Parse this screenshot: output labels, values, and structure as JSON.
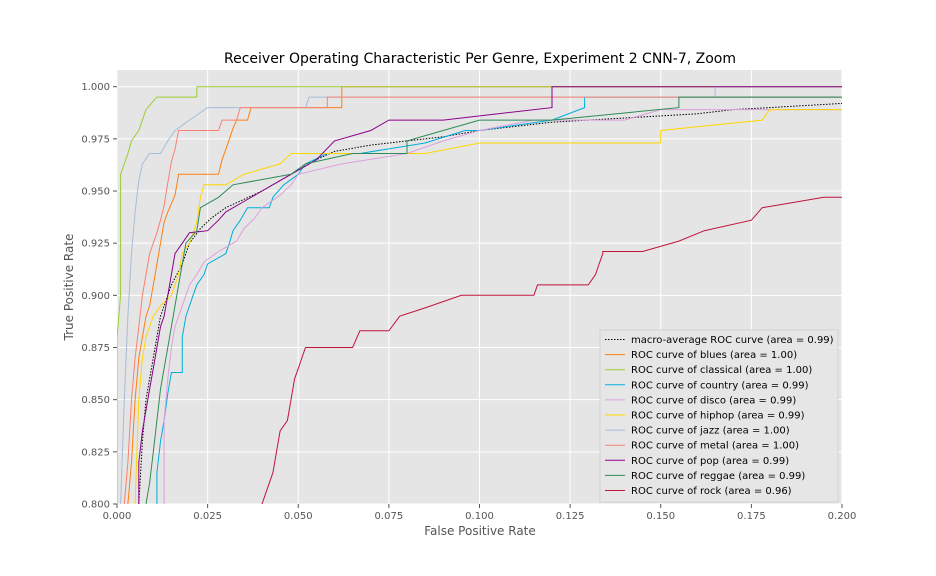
{
  "chart_data": {
    "type": "line",
    "title": "Receiver Operating Characteristic Per Genre, Experiment 2 CNN-7, Zoom",
    "xlabel": "False Positive Rate",
    "ylabel": "True Positive Rate",
    "xlim": [
      0.0,
      0.2
    ],
    "ylim": [
      0.8,
      1.008
    ],
    "xticks": [
      "0.000",
      "0.025",
      "0.050",
      "0.075",
      "0.100",
      "0.125",
      "0.150",
      "0.175",
      "0.200"
    ],
    "yticks": [
      "0.800",
      "0.825",
      "0.850",
      "0.875",
      "0.900",
      "0.925",
      "0.950",
      "0.975",
      "1.000"
    ],
    "grid": true,
    "legend_position": "lower-right",
    "series": [
      {
        "name": "macro-average ROC curve (area = 0.99)",
        "color": "#000000",
        "dashed": true,
        "points": [
          [
            0.006,
            0.8
          ],
          [
            0.007,
            0.83
          ],
          [
            0.008,
            0.85
          ],
          [
            0.009,
            0.86
          ],
          [
            0.01,
            0.87
          ],
          [
            0.012,
            0.89
          ],
          [
            0.015,
            0.905
          ],
          [
            0.018,
            0.915
          ],
          [
            0.02,
            0.925
          ],
          [
            0.023,
            0.932
          ],
          [
            0.026,
            0.937
          ],
          [
            0.03,
            0.942
          ],
          [
            0.035,
            0.946
          ],
          [
            0.04,
            0.95
          ],
          [
            0.045,
            0.955
          ],
          [
            0.05,
            0.96
          ],
          [
            0.055,
            0.965
          ],
          [
            0.06,
            0.969
          ],
          [
            0.07,
            0.972
          ],
          [
            0.08,
            0.974
          ],
          [
            0.09,
            0.976
          ],
          [
            0.1,
            0.979
          ],
          [
            0.12,
            0.983
          ],
          [
            0.14,
            0.985
          ],
          [
            0.16,
            0.987
          ],
          [
            0.17,
            0.989
          ],
          [
            0.18,
            0.99
          ],
          [
            0.19,
            0.991
          ],
          [
            0.2,
            0.992
          ]
        ]
      },
      {
        "name": "ROC curve of blues (area = 1.00)",
        "color": "#ff7f0e",
        "points": [
          [
            0.003,
            0.8
          ],
          [
            0.004,
            0.82
          ],
          [
            0.005,
            0.85
          ],
          [
            0.006,
            0.87
          ],
          [
            0.007,
            0.88
          ],
          [
            0.008,
            0.89
          ],
          [
            0.009,
            0.895
          ],
          [
            0.01,
            0.905
          ],
          [
            0.011,
            0.915
          ],
          [
            0.012,
            0.925
          ],
          [
            0.013,
            0.935
          ],
          [
            0.014,
            0.94
          ],
          [
            0.016,
            0.948
          ],
          [
            0.017,
            0.958
          ],
          [
            0.028,
            0.958
          ],
          [
            0.029,
            0.965
          ],
          [
            0.03,
            0.97
          ],
          [
            0.031,
            0.975
          ],
          [
            0.032,
            0.98
          ],
          [
            0.033,
            0.984
          ],
          [
            0.036,
            0.984
          ],
          [
            0.037,
            0.99
          ],
          [
            0.062,
            0.99
          ],
          [
            0.062,
            1.0
          ],
          [
            0.2,
            1.0
          ]
        ]
      },
      {
        "name": "ROC curve of classical (area = 1.00)",
        "color": "#9acd32",
        "points": [
          [
            0.0,
            0.8
          ],
          [
            0.0,
            0.88
          ],
          [
            0.001,
            0.9
          ],
          [
            0.001,
            0.958
          ],
          [
            0.002,
            0.963
          ],
          [
            0.003,
            0.968
          ],
          [
            0.004,
            0.974
          ],
          [
            0.006,
            0.979
          ],
          [
            0.007,
            0.984
          ],
          [
            0.008,
            0.989
          ],
          [
            0.011,
            0.995
          ],
          [
            0.022,
            0.995
          ],
          [
            0.022,
            1.0
          ],
          [
            0.2,
            1.0
          ]
        ]
      },
      {
        "name": "ROC curve of country (area = 0.99)",
        "color": "#00aedb",
        "points": [
          [
            0.011,
            0.8
          ],
          [
            0.011,
            0.815
          ],
          [
            0.012,
            0.83
          ],
          [
            0.013,
            0.84
          ],
          [
            0.014,
            0.853
          ],
          [
            0.015,
            0.863
          ],
          [
            0.018,
            0.863
          ],
          [
            0.018,
            0.88
          ],
          [
            0.019,
            0.89
          ],
          [
            0.02,
            0.895
          ],
          [
            0.021,
            0.9
          ],
          [
            0.022,
            0.905
          ],
          [
            0.024,
            0.91
          ],
          [
            0.025,
            0.915
          ],
          [
            0.03,
            0.92
          ],
          [
            0.031,
            0.925
          ],
          [
            0.032,
            0.931
          ],
          [
            0.034,
            0.936
          ],
          [
            0.036,
            0.942
          ],
          [
            0.042,
            0.942
          ],
          [
            0.043,
            0.947
          ],
          [
            0.046,
            0.953
          ],
          [
            0.05,
            0.958
          ],
          [
            0.052,
            0.963
          ],
          [
            0.058,
            0.968
          ],
          [
            0.067,
            0.968
          ],
          [
            0.085,
            0.973
          ],
          [
            0.096,
            0.979
          ],
          [
            0.1,
            0.979
          ],
          [
            0.12,
            0.984
          ],
          [
            0.129,
            0.99
          ],
          [
            0.129,
            0.995
          ],
          [
            0.2,
            0.995
          ]
        ]
      },
      {
        "name": "ROC curve of disco (area = 0.99)",
        "color": "#dda0dd",
        "points": [
          [
            0.013,
            0.8
          ],
          [
            0.013,
            0.84
          ],
          [
            0.014,
            0.86
          ],
          [
            0.015,
            0.875
          ],
          [
            0.016,
            0.885
          ],
          [
            0.018,
            0.895
          ],
          [
            0.02,
            0.905
          ],
          [
            0.022,
            0.91
          ],
          [
            0.024,
            0.916
          ],
          [
            0.028,
            0.921
          ],
          [
            0.033,
            0.926
          ],
          [
            0.035,
            0.932
          ],
          [
            0.038,
            0.937
          ],
          [
            0.04,
            0.942
          ],
          [
            0.045,
            0.948
          ],
          [
            0.048,
            0.953
          ],
          [
            0.05,
            0.958
          ],
          [
            0.062,
            0.963
          ],
          [
            0.08,
            0.968
          ],
          [
            0.09,
            0.974
          ],
          [
            0.1,
            0.979
          ],
          [
            0.115,
            0.984
          ],
          [
            0.14,
            0.984
          ],
          [
            0.15,
            0.989
          ],
          [
            0.2,
            0.989
          ]
        ]
      },
      {
        "name": "ROC curve of hiphop (area = 0.99)",
        "color": "#ffd700",
        "points": [
          [
            0.005,
            0.8
          ],
          [
            0.006,
            0.85
          ],
          [
            0.007,
            0.87
          ],
          [
            0.008,
            0.88
          ],
          [
            0.01,
            0.89
          ],
          [
            0.012,
            0.895
          ],
          [
            0.015,
            0.9
          ],
          [
            0.017,
            0.91
          ],
          [
            0.018,
            0.92
          ],
          [
            0.02,
            0.925
          ],
          [
            0.022,
            0.935
          ],
          [
            0.023,
            0.947
          ],
          [
            0.024,
            0.953
          ],
          [
            0.03,
            0.953
          ],
          [
            0.035,
            0.958
          ],
          [
            0.045,
            0.963
          ],
          [
            0.048,
            0.968
          ],
          [
            0.065,
            0.968
          ],
          [
            0.085,
            0.968
          ],
          [
            0.1,
            0.973
          ],
          [
            0.15,
            0.973
          ],
          [
            0.15,
            0.979
          ],
          [
            0.178,
            0.984
          ],
          [
            0.18,
            0.989
          ],
          [
            0.2,
            0.989
          ]
        ]
      },
      {
        "name": "ROC curve of jazz (area = 1.00)",
        "color": "#a6bddb",
        "points": [
          [
            0.001,
            0.8
          ],
          [
            0.002,
            0.85
          ],
          [
            0.003,
            0.89
          ],
          [
            0.004,
            0.92
          ],
          [
            0.005,
            0.94
          ],
          [
            0.006,
            0.955
          ],
          [
            0.007,
            0.963
          ],
          [
            0.009,
            0.968
          ],
          [
            0.012,
            0.968
          ],
          [
            0.014,
            0.974
          ],
          [
            0.016,
            0.979
          ],
          [
            0.02,
            0.984
          ],
          [
            0.025,
            0.99
          ],
          [
            0.052,
            0.99
          ],
          [
            0.053,
            0.995
          ],
          [
            0.06,
            0.995
          ],
          [
            0.165,
            0.995
          ],
          [
            0.165,
            1.0
          ],
          [
            0.2,
            1.0
          ]
        ]
      },
      {
        "name": "ROC curve of metal (area = 1.00)",
        "color": "#fa8072",
        "points": [
          [
            0.002,
            0.8
          ],
          [
            0.003,
            0.82
          ],
          [
            0.004,
            0.85
          ],
          [
            0.005,
            0.87
          ],
          [
            0.006,
            0.885
          ],
          [
            0.007,
            0.9
          ],
          [
            0.008,
            0.91
          ],
          [
            0.009,
            0.92
          ],
          [
            0.01,
            0.925
          ],
          [
            0.011,
            0.93
          ],
          [
            0.012,
            0.936
          ],
          [
            0.013,
            0.943
          ],
          [
            0.014,
            0.954
          ],
          [
            0.015,
            0.964
          ],
          [
            0.016,
            0.97
          ],
          [
            0.017,
            0.979
          ],
          [
            0.028,
            0.979
          ],
          [
            0.029,
            0.984
          ],
          [
            0.033,
            0.984
          ],
          [
            0.034,
            0.99
          ],
          [
            0.058,
            0.99
          ],
          [
            0.058,
            0.995
          ],
          [
            0.2,
            0.995
          ]
        ]
      },
      {
        "name": "ROC curve of pop (area = 0.99)",
        "color": "#8b008b",
        "points": [
          [
            0.006,
            0.8
          ],
          [
            0.006,
            0.82
          ],
          [
            0.007,
            0.835
          ],
          [
            0.008,
            0.845
          ],
          [
            0.009,
            0.855
          ],
          [
            0.01,
            0.865
          ],
          [
            0.011,
            0.875
          ],
          [
            0.012,
            0.885
          ],
          [
            0.013,
            0.89
          ],
          [
            0.014,
            0.9
          ],
          [
            0.015,
            0.91
          ],
          [
            0.016,
            0.92
          ],
          [
            0.018,
            0.925
          ],
          [
            0.02,
            0.93
          ],
          [
            0.025,
            0.931
          ],
          [
            0.028,
            0.936
          ],
          [
            0.03,
            0.94
          ],
          [
            0.035,
            0.945
          ],
          [
            0.04,
            0.95
          ],
          [
            0.045,
            0.955
          ],
          [
            0.05,
            0.96
          ],
          [
            0.055,
            0.965
          ],
          [
            0.06,
            0.974
          ],
          [
            0.07,
            0.979
          ],
          [
            0.075,
            0.984
          ],
          [
            0.09,
            0.984
          ],
          [
            0.12,
            0.99
          ],
          [
            0.12,
            1.0
          ],
          [
            0.2,
            1.0
          ]
        ]
      },
      {
        "name": "ROC curve of reggae (area = 0.99)",
        "color": "#2e8b57",
        "points": [
          [
            0.008,
            0.8
          ],
          [
            0.009,
            0.81
          ],
          [
            0.01,
            0.825
          ],
          [
            0.011,
            0.84
          ],
          [
            0.012,
            0.855
          ],
          [
            0.013,
            0.865
          ],
          [
            0.014,
            0.875
          ],
          [
            0.015,
            0.885
          ],
          [
            0.016,
            0.895
          ],
          [
            0.017,
            0.905
          ],
          [
            0.018,
            0.915
          ],
          [
            0.019,
            0.925
          ],
          [
            0.022,
            0.931
          ],
          [
            0.023,
            0.942
          ],
          [
            0.028,
            0.947
          ],
          [
            0.032,
            0.953
          ],
          [
            0.048,
            0.958
          ],
          [
            0.052,
            0.963
          ],
          [
            0.065,
            0.968
          ],
          [
            0.08,
            0.968
          ],
          [
            0.08,
            0.974
          ],
          [
            0.09,
            0.979
          ],
          [
            0.1,
            0.984
          ],
          [
            0.12,
            0.984
          ],
          [
            0.155,
            0.99
          ],
          [
            0.155,
            0.995
          ],
          [
            0.2,
            0.995
          ]
        ]
      },
      {
        "name": "ROC curve of rock (area = 0.96)",
        "color": "#c0143c",
        "points": [
          [
            0.04,
            0.8
          ],
          [
            0.041,
            0.805
          ],
          [
            0.043,
            0.815
          ],
          [
            0.044,
            0.825
          ],
          [
            0.045,
            0.835
          ],
          [
            0.047,
            0.84
          ],
          [
            0.048,
            0.85
          ],
          [
            0.049,
            0.86
          ],
          [
            0.05,
            0.865
          ],
          [
            0.051,
            0.87
          ],
          [
            0.052,
            0.875
          ],
          [
            0.065,
            0.875
          ],
          [
            0.067,
            0.883
          ],
          [
            0.075,
            0.883
          ],
          [
            0.078,
            0.89
          ],
          [
            0.085,
            0.894
          ],
          [
            0.095,
            0.9
          ],
          [
            0.115,
            0.9
          ],
          [
            0.116,
            0.905
          ],
          [
            0.13,
            0.905
          ],
          [
            0.132,
            0.91
          ],
          [
            0.133,
            0.915
          ],
          [
            0.134,
            0.92
          ],
          [
            0.134,
            0.921
          ],
          [
            0.145,
            0.921
          ],
          [
            0.155,
            0.926
          ],
          [
            0.162,
            0.931
          ],
          [
            0.175,
            0.936
          ],
          [
            0.178,
            0.942
          ],
          [
            0.195,
            0.947
          ],
          [
            0.2,
            0.947
          ]
        ]
      }
    ]
  }
}
